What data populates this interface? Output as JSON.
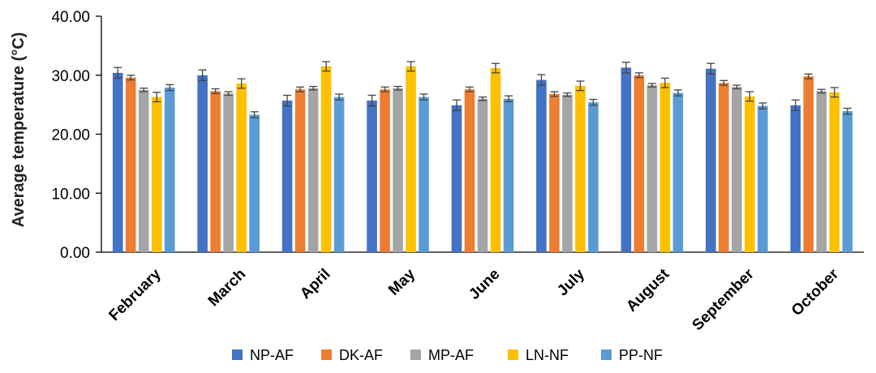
{
  "chart_data": {
    "type": "bar",
    "ylabel": "Average temperature (°C)",
    "xlabel": "",
    "ylim": [
      0,
      40
    ],
    "yticks": [
      "0.00",
      "10.00",
      "20.00",
      "30.00",
      "40.00"
    ],
    "grid": false,
    "legend": "bottom",
    "categories": [
      "February",
      "March",
      "April",
      "May",
      "June",
      "July",
      "August",
      "September",
      "October"
    ],
    "series": [
      {
        "name": "NP-AF",
        "color": "#4472C4",
        "values": [
          30.4,
          30.0,
          25.7,
          25.7,
          24.9,
          29.2,
          31.3,
          31.1,
          24.9
        ],
        "errors": [
          0.9,
          0.9,
          0.9,
          0.9,
          0.9,
          0.9,
          0.9,
          0.9,
          0.9
        ]
      },
      {
        "name": "DK-AF",
        "color": "#ED7D31",
        "values": [
          29.6,
          27.3,
          27.6,
          27.6,
          27.6,
          26.8,
          30.0,
          28.7,
          29.8
        ],
        "errors": [
          0.4,
          0.4,
          0.4,
          0.4,
          0.4,
          0.4,
          0.4,
          0.4,
          0.4
        ]
      },
      {
        "name": "MP-AF",
        "color": "#A5A5A5",
        "values": [
          27.5,
          26.9,
          27.8,
          27.8,
          26.0,
          26.7,
          28.3,
          28.0,
          27.3
        ],
        "errors": [
          0.3,
          0.3,
          0.3,
          0.3,
          0.3,
          0.3,
          0.3,
          0.3,
          0.3
        ]
      },
      {
        "name": "LN-NF",
        "color": "#FFC000",
        "values": [
          26.3,
          28.6,
          31.5,
          31.5,
          31.2,
          28.2,
          28.7,
          26.4,
          27.1
        ],
        "errors": [
          0.8,
          0.8,
          0.8,
          0.8,
          0.8,
          0.8,
          0.8,
          0.8,
          0.8
        ]
      },
      {
        "name": "PP-NF",
        "color": "#5B9BD5",
        "values": [
          27.9,
          23.3,
          26.3,
          26.3,
          26.0,
          25.4,
          27.0,
          24.8,
          23.9
        ],
        "errors": [
          0.5,
          0.5,
          0.5,
          0.5,
          0.5,
          0.5,
          0.5,
          0.5,
          0.5
        ]
      }
    ]
  }
}
